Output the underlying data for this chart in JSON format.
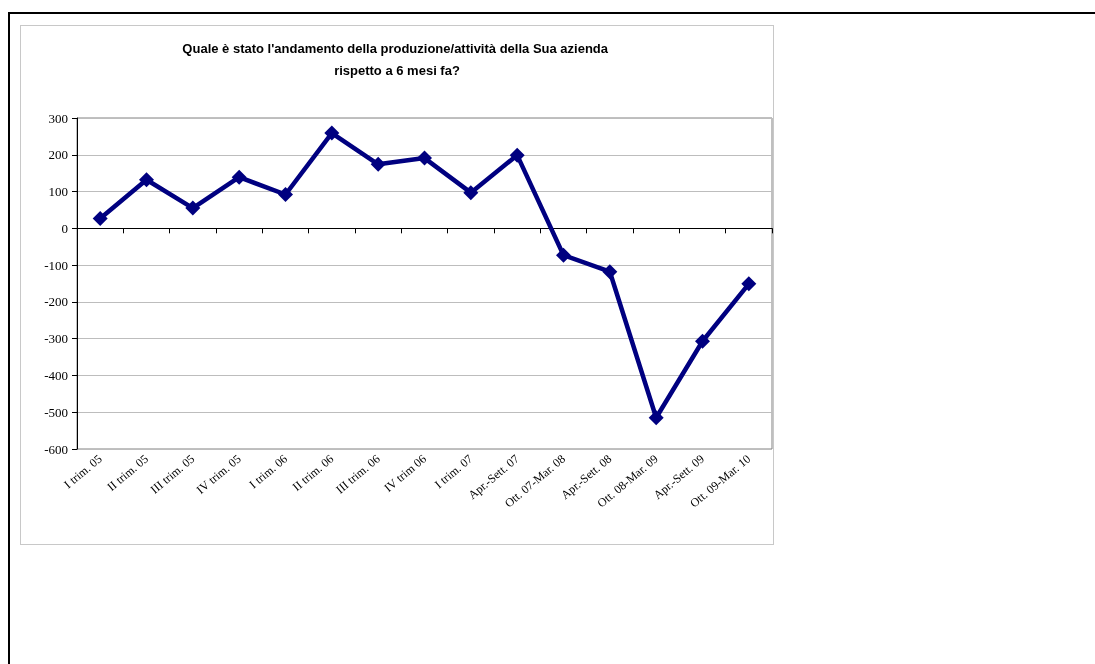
{
  "chart_data": {
    "type": "line",
    "title": "Quale è stato l'andamento della produzione/attività della Sua azienda rispetto a 6 mesi fa?",
    "categories": [
      "I trim. 05",
      "II trim. 05",
      "III trim. 05",
      "IV trim. 05",
      "I trim. 06",
      "II trim. 06",
      "III trim. 06",
      "IV trim 06",
      "I trim. 07",
      "Apr.-Sett. 07",
      "Ott. 07-Mar. 08",
      "Apr.-Sett. 08",
      "Ott. 08-Mar. 09",
      "Apr.-Sett. 09",
      "Ott. 09-Mar. 10"
    ],
    "series": [
      {
        "color": "#000080",
        "values": [
          27,
          132,
          55,
          139,
          92,
          259,
          174,
          191,
          97,
          199,
          -73,
          -118,
          -515,
          -307,
          -151
        ]
      }
    ],
    "ylim": [
      -600,
      300
    ],
    "yticks": [
      -600,
      -500,
      -400,
      -300,
      -200,
      -100,
      0,
      100,
      200,
      300
    ],
    "grid": "y",
    "marker": "diamond",
    "line_style": "solid"
  }
}
